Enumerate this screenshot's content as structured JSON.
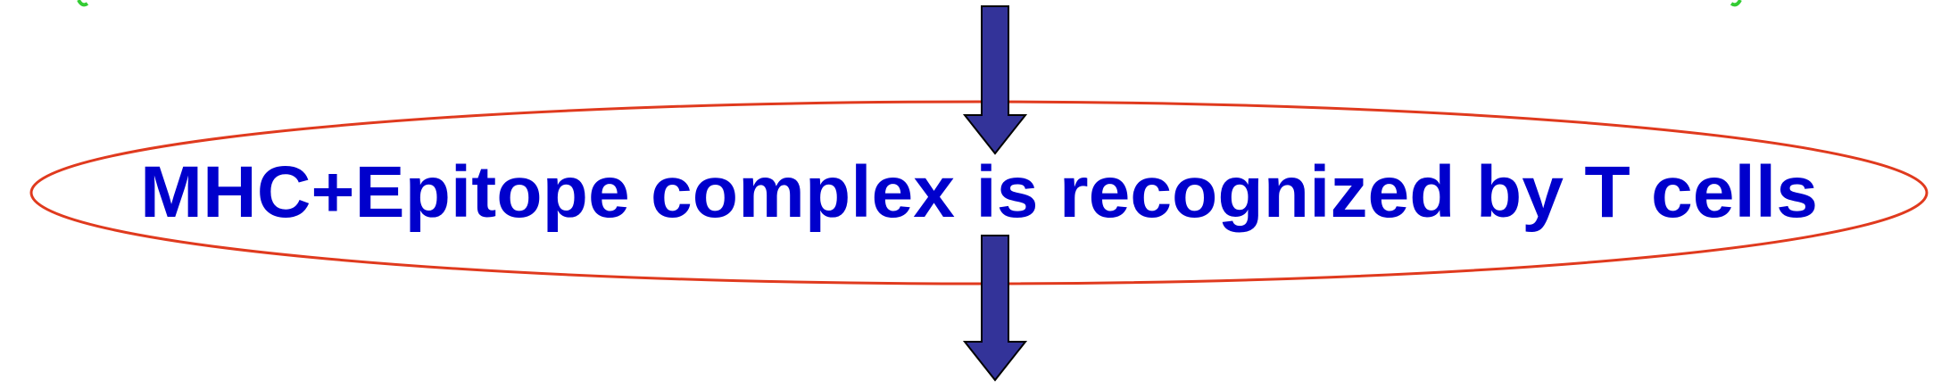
{
  "diagram": {
    "caption": "MHC+Epitope complex is recognized by T cells",
    "colors": {
      "caption_text": "#0000cc",
      "ellipse_stroke": "#e03a1e",
      "arrow_fill": "#333399",
      "arrow_stroke": "#000000",
      "corner_accent": "#33cc33"
    }
  }
}
